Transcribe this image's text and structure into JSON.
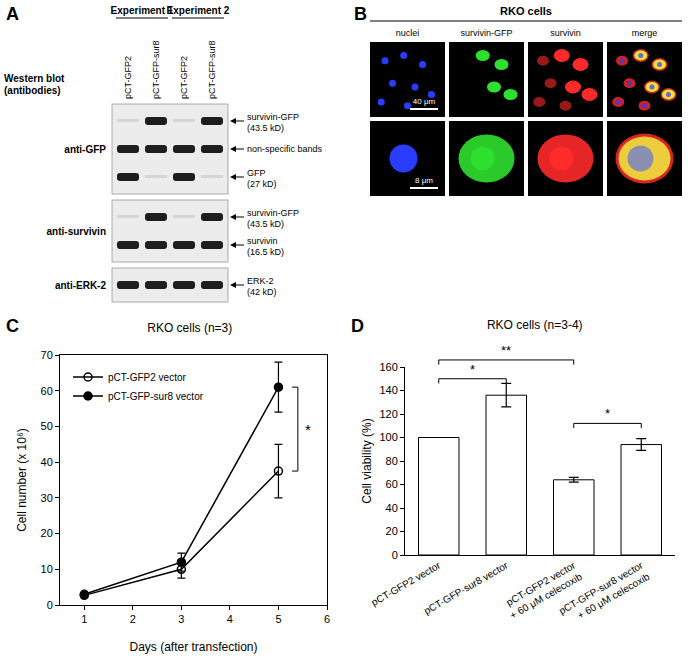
{
  "panels": {
    "A": {
      "letter": "A",
      "experiments": [
        "Experiment 1",
        "Experiment 2"
      ],
      "lanes": [
        "pCT-GFP2",
        "pCT-GFP-sur8",
        "pCT-GFP2",
        "pCT-GFP-sur8"
      ],
      "method": "Western blot (antibodies)",
      "blots": [
        {
          "antibody": "anti-GFP",
          "bands": [
            {
              "label": "survivin-GFP (43.5 kD)",
              "present": [
                false,
                true,
                false,
                true
              ]
            },
            {
              "label": "non-specific bands",
              "present": [
                true,
                true,
                true,
                true
              ]
            },
            {
              "label": "GFP (27 kD)",
              "present": [
                true,
                false,
                true,
                false
              ]
            }
          ]
        },
        {
          "antibody": "anti-survivin",
          "bands": [
            {
              "label": "survivin-GFP (43.5 kD)",
              "present": [
                false,
                true,
                false,
                true
              ]
            },
            {
              "label": "survivin (16.5 kD)",
              "present": [
                true,
                true,
                true,
                true
              ]
            }
          ]
        },
        {
          "antibody": "anti-ERK-2",
          "bands": [
            {
              "label": "ERK-2 (42 kD)",
              "present": [
                true,
                true,
                true,
                true
              ]
            }
          ]
        }
      ]
    },
    "B": {
      "letter": "B",
      "title": "RKO cells",
      "channels": [
        {
          "label": "nuclei",
          "color": "#2a3cff"
        },
        {
          "label": "survivin-GFP",
          "color": "#2ee02e"
        },
        {
          "label": "survivin",
          "color": "#ff2a2a"
        },
        {
          "label": "merge",
          "color": "#f0e040"
        }
      ],
      "scale_bars": [
        "40 μm",
        "8 μm"
      ]
    }
  },
  "chart_data": [
    {
      "letter": "C",
      "type": "line",
      "title": "RKO cells (n=3)",
      "x_label": "Days (after transfection)",
      "y_label": "Cell number (x 10⁶)",
      "x": [
        1,
        3,
        5
      ],
      "series": [
        {
          "name": "pCT-GFP2 vector",
          "color": "#000000",
          "marker": "circle-open",
          "values": [
            2.7,
            10,
            37.5
          ],
          "errors": [
            0.5,
            2.5,
            7.5
          ]
        },
        {
          "name": "pCT-GFP-sur8 vector",
          "color": "#000000",
          "marker": "circle",
          "values": [
            3,
            12,
            61
          ],
          "errors": [
            0.4,
            2.5,
            7
          ]
        }
      ],
      "xlim": [
        0.5,
        6
      ],
      "xticks": [
        1,
        2,
        3,
        4,
        5,
        6
      ],
      "ylim": [
        0,
        70
      ],
      "yticks": [
        0,
        10,
        20,
        30,
        40,
        50,
        60,
        70
      ],
      "legend": "upper left",
      "brackets": [
        {
          "text": "*",
          "x": 5.4,
          "from": 37.5,
          "to": 61
        }
      ]
    },
    {
      "letter": "D",
      "type": "bar",
      "title": "RKO cells (n=3-4)",
      "y_label": "Cell viability (%)",
      "categories": [
        "pCT-GFP2 vector",
        "pCT-GFP-sur8 vector",
        "pCT-GFP2 vector + 60 μM celecoxib",
        "pCT-GFP-sur8 vector + 60 μM celecoxib"
      ],
      "values": [
        100,
        136,
        64,
        94
      ],
      "errors": [
        0,
        10,
        2,
        5
      ],
      "colors": [
        "#ffffff",
        "#ffffff",
        "#ffffff",
        "#ffffff"
      ],
      "ylim": [
        0,
        160
      ],
      "yticks": [
        0,
        20,
        40,
        60,
        80,
        100,
        120,
        140,
        160
      ],
      "brackets": [
        {
          "text": "*",
          "between": [
            0,
            1
          ],
          "y": 150
        },
        {
          "text": "**",
          "between": [
            0,
            2
          ],
          "y": 166
        },
        {
          "text": "*",
          "between": [
            2,
            3
          ],
          "y": 112
        }
      ]
    }
  ]
}
